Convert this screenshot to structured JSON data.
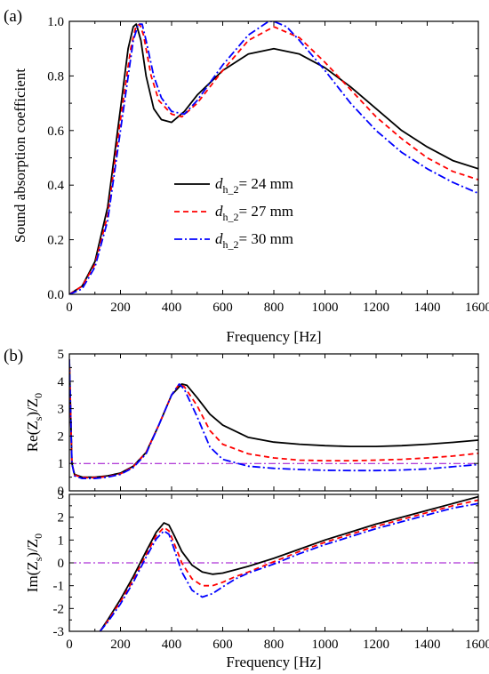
{
  "panels": {
    "a": {
      "label": "(a)"
    },
    "b": {
      "label": "(b)"
    }
  },
  "colors": {
    "d24": "#000000",
    "d27": "#ff0000",
    "d30": "#0000ff",
    "reference": "#9900cc"
  },
  "chart_data": [
    {
      "type": "line",
      "panel": "(a)",
      "xlabel": "Frequency [Hz]",
      "ylabel": "Sound absorption coefficient",
      "xlim": [
        0,
        1600
      ],
      "ylim": [
        0,
        1.0
      ],
      "xticks": [
        "0",
        "200",
        "400",
        "600",
        "800",
        "1000",
        "1200",
        "1400",
        "1600"
      ],
      "yticks": [
        "0.0",
        "0.2",
        "0.4",
        "0.6",
        "0.8",
        "1.0"
      ],
      "legend_position": "center",
      "legend": [
        {
          "prefix": "d",
          "sub": "h_2",
          "text": "= 24 mm"
        },
        {
          "prefix": "d",
          "sub": "h_2",
          "text": "= 27 mm"
        },
        {
          "prefix": "d",
          "sub": "h_2",
          "text": "= 30 mm"
        }
      ],
      "series": [
        {
          "style": "solid",
          "x": [
            0,
            50,
            100,
            150,
            200,
            230,
            250,
            262,
            280,
            300,
            330,
            360,
            400,
            450,
            500,
            600,
            700,
            800,
            900,
            1000,
            1100,
            1200,
            1300,
            1400,
            1500,
            1600
          ],
          "y": [
            0,
            0.03,
            0.12,
            0.32,
            0.68,
            0.9,
            0.98,
            0.99,
            0.93,
            0.8,
            0.68,
            0.64,
            0.63,
            0.67,
            0.73,
            0.82,
            0.88,
            0.9,
            0.88,
            0.83,
            0.76,
            0.68,
            0.6,
            0.54,
            0.49,
            0.46
          ]
        },
        {
          "style": "dash",
          "x": [
            0,
            50,
            100,
            150,
            200,
            240,
            260,
            275,
            290,
            320,
            350,
            400,
            440,
            500,
            600,
            700,
            800,
            900,
            1000,
            1100,
            1200,
            1300,
            1400,
            1500,
            1600
          ],
          "y": [
            0,
            0.03,
            0.11,
            0.29,
            0.64,
            0.9,
            0.98,
            0.99,
            0.95,
            0.8,
            0.71,
            0.66,
            0.65,
            0.7,
            0.82,
            0.93,
            0.98,
            0.94,
            0.85,
            0.75,
            0.65,
            0.57,
            0.5,
            0.45,
            0.42
          ]
        },
        {
          "style": "dashdot",
          "x": [
            0,
            50,
            100,
            150,
            200,
            250,
            270,
            285,
            300,
            330,
            360,
            400,
            450,
            500,
            600,
            700,
            780,
            800,
            850,
            900,
            1000,
            1100,
            1200,
            1300,
            1400,
            1500,
            1600
          ],
          "y": [
            0,
            0.02,
            0.1,
            0.27,
            0.6,
            0.93,
            0.99,
            0.99,
            0.93,
            0.8,
            0.72,
            0.67,
            0.66,
            0.71,
            0.84,
            0.95,
            1.0,
            1.0,
            0.98,
            0.93,
            0.82,
            0.7,
            0.6,
            0.52,
            0.46,
            0.41,
            0.37
          ]
        }
      ]
    },
    {
      "type": "line",
      "panel": "(b) upper",
      "xlabel": "",
      "ylabel": {
        "main": "Re(Z",
        "sub1": "s",
        "mid": ")/Z",
        "sub2": "0"
      },
      "xlim": [
        0,
        1600
      ],
      "ylim": [
        0,
        5
      ],
      "yticks": [
        "0",
        "1",
        "2",
        "3",
        "4",
        "5"
      ],
      "reference_line": 1,
      "series": [
        {
          "style": "solid",
          "x": [
            0,
            10,
            20,
            50,
            100,
            150,
            200,
            250,
            300,
            350,
            400,
            440,
            460,
            500,
            550,
            600,
            700,
            800,
            900,
            1000,
            1100,
            1200,
            1300,
            1400,
            1500,
            1600
          ],
          "y": [
            4.8,
            1.0,
            0.6,
            0.5,
            0.5,
            0.55,
            0.65,
            0.9,
            1.4,
            2.4,
            3.5,
            3.9,
            3.85,
            3.4,
            2.8,
            2.4,
            1.95,
            1.78,
            1.7,
            1.65,
            1.62,
            1.62,
            1.65,
            1.7,
            1.77,
            1.85
          ]
        },
        {
          "style": "dash",
          "x": [
            0,
            10,
            20,
            50,
            100,
            150,
            200,
            250,
            300,
            350,
            400,
            430,
            450,
            500,
            550,
            600,
            700,
            800,
            900,
            1000,
            1100,
            1200,
            1300,
            1400,
            1500,
            1600
          ],
          "y": [
            4.8,
            1.0,
            0.58,
            0.48,
            0.48,
            0.52,
            0.62,
            0.88,
            1.4,
            2.4,
            3.5,
            3.9,
            3.8,
            3.1,
            2.2,
            1.7,
            1.35,
            1.2,
            1.12,
            1.1,
            1.1,
            1.12,
            1.15,
            1.2,
            1.27,
            1.37
          ]
        },
        {
          "style": "dashdot",
          "x": [
            0,
            10,
            20,
            50,
            100,
            150,
            200,
            250,
            300,
            350,
            400,
            430,
            450,
            500,
            550,
            600,
            700,
            800,
            900,
            1000,
            1100,
            1200,
            1300,
            1400,
            1500,
            1600
          ],
          "y": [
            4.8,
            1.0,
            0.55,
            0.45,
            0.45,
            0.5,
            0.6,
            0.85,
            1.35,
            2.4,
            3.5,
            3.9,
            3.7,
            2.7,
            1.6,
            1.15,
            0.9,
            0.82,
            0.78,
            0.75,
            0.74,
            0.74,
            0.76,
            0.8,
            0.88,
            0.96
          ]
        }
      ]
    },
    {
      "type": "line",
      "panel": "(b) lower",
      "xlabel": "Frequency [Hz]",
      "ylabel": {
        "main": "Im(Z",
        "sub1": "s",
        "mid": ")/Z",
        "sub2": "0"
      },
      "xlim": [
        0,
        1600
      ],
      "ylim": [
        -3,
        3
      ],
      "xticks": [
        "0",
        "200",
        "400",
        "600",
        "800",
        "1000",
        "1200",
        "1400",
        "1600"
      ],
      "yticks": [
        "-3",
        "-2",
        "-1",
        "0",
        "1",
        "2",
        "3"
      ],
      "reference_line": 0,
      "series": [
        {
          "style": "solid",
          "x": [
            120,
            150,
            200,
            250,
            300,
            340,
            370,
            390,
            410,
            440,
            480,
            520,
            560,
            600,
            650,
            700,
            800,
            900,
            1000,
            1100,
            1200,
            1300,
            1400,
            1500,
            1600
          ],
          "y": [
            -3,
            -2.5,
            -1.6,
            -0.6,
            0.5,
            1.35,
            1.75,
            1.65,
            1.2,
            0.5,
            -0.1,
            -0.4,
            -0.5,
            -0.45,
            -0.3,
            -0.15,
            0.2,
            0.6,
            1.0,
            1.35,
            1.7,
            2.0,
            2.3,
            2.6,
            2.9
          ]
        },
        {
          "style": "dash",
          "x": [
            120,
            150,
            200,
            250,
            300,
            340,
            370,
            390,
            410,
            440,
            480,
            520,
            560,
            600,
            650,
            700,
            800,
            900,
            1000,
            1100,
            1200,
            1300,
            1400,
            1500,
            1600
          ],
          "y": [
            -3,
            -2.55,
            -1.7,
            -0.75,
            0.35,
            1.2,
            1.55,
            1.4,
            0.85,
            0.0,
            -0.7,
            -1.0,
            -1.0,
            -0.85,
            -0.6,
            -0.4,
            0.05,
            0.5,
            0.9,
            1.25,
            1.6,
            1.9,
            2.2,
            2.5,
            2.75
          ]
        },
        {
          "style": "dashdot",
          "x": [
            120,
            150,
            200,
            250,
            300,
            340,
            370,
            390,
            410,
            440,
            480,
            520,
            560,
            600,
            650,
            700,
            800,
            900,
            1000,
            1100,
            1200,
            1300,
            1400,
            1500,
            1600
          ],
          "y": [
            -3,
            -2.6,
            -1.8,
            -0.85,
            0.25,
            1.05,
            1.4,
            1.25,
            0.6,
            -0.4,
            -1.2,
            -1.5,
            -1.35,
            -1.05,
            -0.7,
            -0.45,
            -0.05,
            0.4,
            0.8,
            1.15,
            1.5,
            1.8,
            2.1,
            2.4,
            2.6
          ]
        }
      ]
    }
  ]
}
